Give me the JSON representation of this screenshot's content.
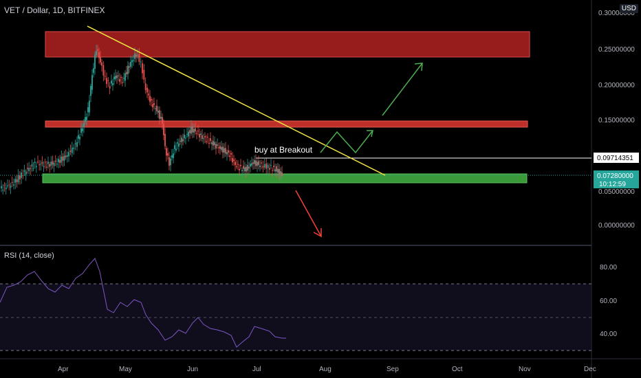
{
  "header": {
    "symbol": "VET / Dollar, 1D, BITFINEX",
    "currency": "USD",
    "rsi_label": "RSI (14, close)"
  },
  "price_axis": {
    "ticks": [
      "0.30000000",
      "0.25000000",
      "0.20000000",
      "0.15000000",
      "0.05000000",
      "0.00000000"
    ],
    "tags": {
      "breakout_level": "0.09714351",
      "current_price": "0.07280000",
      "countdown": "10:12:59"
    }
  },
  "rsi_axis": {
    "ticks": [
      "80.00",
      "60.00",
      "40.00"
    ]
  },
  "time_axis": {
    "ticks": [
      "Apr",
      "May",
      "Jun",
      "Jul",
      "Aug",
      "Sep",
      "Oct",
      "Nov",
      "Dec"
    ]
  },
  "annotations": {
    "breakout_text": "buy at Breakout"
  },
  "colors": {
    "background": "#000000",
    "resistance_zone": "#b22222",
    "support_zone": "#3a9a3a",
    "trendline": "#f5e642",
    "up_arrow": "#4caf50",
    "down_arrow": "#f44336",
    "rsi_line": "#7e57c2",
    "candle_up": "#26a69a",
    "candle_down": "#ef5350",
    "current_tag": "#26a69a"
  }
}
